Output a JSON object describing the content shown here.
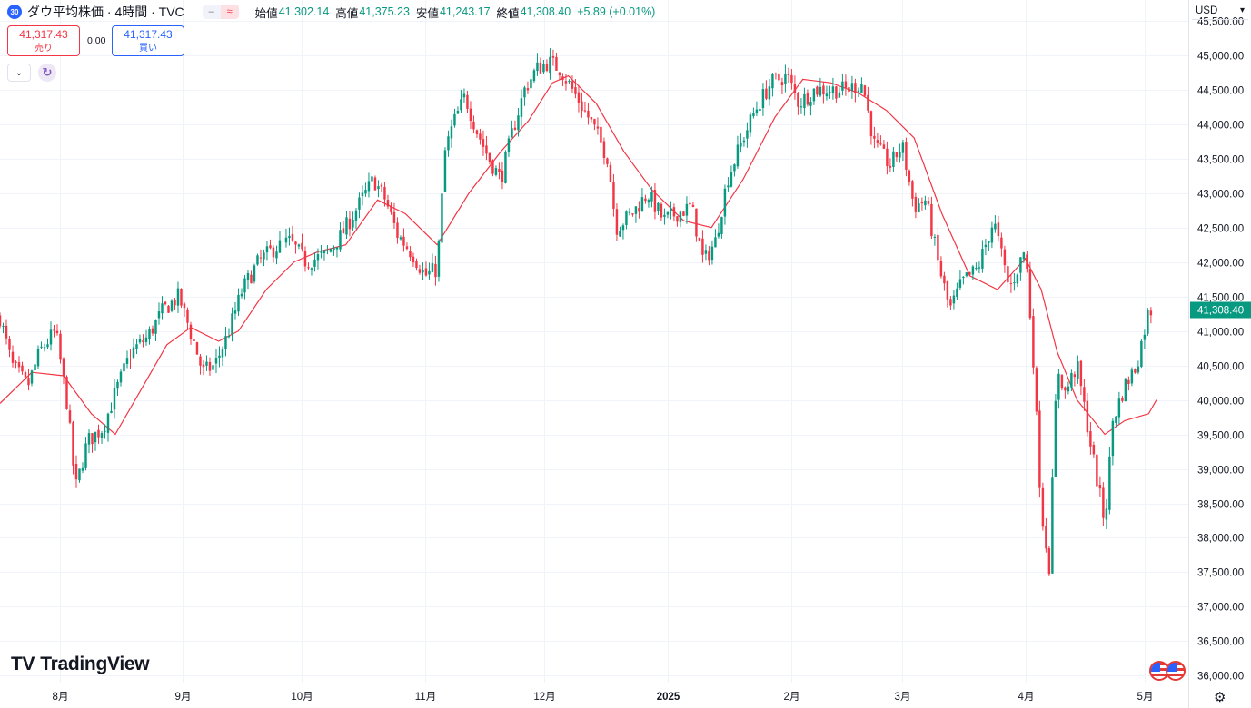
{
  "header": {
    "badge": "30",
    "title": "ダウ平均株価 · 4時間 · TVC",
    "ohlc": [
      {
        "label": "始値",
        "value": "41,302.14"
      },
      {
        "label": "高値",
        "value": "41,375.23"
      },
      {
        "label": "安値",
        "value": "41,243.17"
      },
      {
        "label": "終値",
        "value": "41,308.40"
      }
    ],
    "change": "+5.89 (+0.01%)",
    "pill_left": "–",
    "pill_right": "≈"
  },
  "trade": {
    "sell_price": "41,317.43",
    "sell_label": "売り",
    "spread": "0.00",
    "buy_price": "41,317.43",
    "buy_label": "買い"
  },
  "currency": "USD",
  "logo_text": "TradingView",
  "colors": {
    "up": "#089981",
    "down": "#f23645",
    "ma": "#f23645",
    "last_price_bg": "#089981",
    "grid": "#f0f3fa"
  },
  "chart_data": {
    "type": "candlestick",
    "symbol": "ダウ平均株価",
    "timeframe": "4時間",
    "y_ticks": [
      36000,
      36500,
      37000,
      37500,
      38000,
      38500,
      39000,
      39500,
      40000,
      40500,
      41000,
      41500,
      42000,
      42500,
      43000,
      43500,
      44000,
      44500,
      45000,
      45500
    ],
    "y_tick_labels": [
      "36,000.00",
      "36,500.00",
      "37,000.00",
      "37,500.00",
      "38,000.00",
      "38,500.00",
      "39,000.00",
      "39,500.00",
      "40,000.00",
      "40,500.00",
      "41,000.00",
      "41,500.00",
      "42,000.00",
      "42,500.00",
      "43,000.00",
      "43,500.00",
      "44,000.00",
      "44,500.00",
      "45,000.00",
      "45,500.00"
    ],
    "ylim": [
      35900,
      45800
    ],
    "x_ticks": [
      {
        "label": "8月",
        "date": "2024-08-01"
      },
      {
        "label": "9月",
        "date": "2024-09-01"
      },
      {
        "label": "10月",
        "date": "2024-10-01"
      },
      {
        "label": "11月",
        "date": "2024-11-01"
      },
      {
        "label": "12月",
        "date": "2024-12-01"
      },
      {
        "label": "2025",
        "date": "2025-01-01"
      },
      {
        "label": "2月",
        "date": "2025-02-01"
      },
      {
        "label": "3月",
        "date": "2025-03-01"
      },
      {
        "label": "4月",
        "date": "2025-04-01"
      },
      {
        "label": "5月",
        "date": "2025-05-01"
      }
    ],
    "xlim": [
      "2024-07-17",
      "2025-05-12"
    ],
    "last_price": 41308.4,
    "last_price_label": "41,308.40",
    "close_path": [
      [
        "2024-07-17",
        41200
      ],
      [
        "2024-07-20",
        40500
      ],
      [
        "2024-07-24",
        40200
      ],
      [
        "2024-07-27",
        40700
      ],
      [
        "2024-07-31",
        41000
      ],
      [
        "2024-08-03",
        39900
      ],
      [
        "2024-08-05",
        38700
      ],
      [
        "2024-08-08",
        39400
      ],
      [
        "2024-08-12",
        39600
      ],
      [
        "2024-08-15",
        40100
      ],
      [
        "2024-08-19",
        40700
      ],
      [
        "2024-08-23",
        40900
      ],
      [
        "2024-08-27",
        41300
      ],
      [
        "2024-08-31",
        41500
      ],
      [
        "2024-09-04",
        40800
      ],
      [
        "2024-09-06",
        40400
      ],
      [
        "2024-09-09",
        40500
      ],
      [
        "2024-09-12",
        40900
      ],
      [
        "2024-09-16",
        41600
      ],
      [
        "2024-09-20",
        42000
      ],
      [
        "2024-09-24",
        42200
      ],
      [
        "2024-09-28",
        42300
      ],
      [
        "2024-10-02",
        42000
      ],
      [
        "2024-10-07",
        42100
      ],
      [
        "2024-10-11",
        42400
      ],
      [
        "2024-10-15",
        42800
      ],
      [
        "2024-10-19",
        43200
      ],
      [
        "2024-10-22",
        42900
      ],
      [
        "2024-10-25",
        42400
      ],
      [
        "2024-10-29",
        42100
      ],
      [
        "2024-11-01",
        41800
      ],
      [
        "2024-11-04",
        41900
      ],
      [
        "2024-11-06",
        43600
      ],
      [
        "2024-11-08",
        44000
      ],
      [
        "2024-11-11",
        44400
      ],
      [
        "2024-11-14",
        43900
      ],
      [
        "2024-11-17",
        43500
      ],
      [
        "2024-11-20",
        43200
      ],
      [
        "2024-11-23",
        43900
      ],
      [
        "2024-11-26",
        44500
      ],
      [
        "2024-11-29",
        44800
      ],
      [
        "2024-12-02",
        44900
      ],
      [
        "2024-12-05",
        44800
      ],
      [
        "2024-12-09",
        44400
      ],
      [
        "2024-12-13",
        44000
      ],
      [
        "2024-12-17",
        43500
      ],
      [
        "2024-12-19",
        42500
      ],
      [
        "2024-12-23",
        42700
      ],
      [
        "2024-12-27",
        43000
      ],
      [
        "2024-12-31",
        42600
      ],
      [
        "2025-01-03",
        42700
      ],
      [
        "2025-01-07",
        42800
      ],
      [
        "2025-01-10",
        42000
      ],
      [
        "2025-01-13",
        42300
      ],
      [
        "2025-01-16",
        43200
      ],
      [
        "2025-01-20",
        43800
      ],
      [
        "2025-01-23",
        44200
      ],
      [
        "2025-01-27",
        44600
      ],
      [
        "2025-01-31",
        44700
      ],
      [
        "2025-02-03",
        44300
      ],
      [
        "2025-02-07",
        44500
      ],
      [
        "2025-02-11",
        44500
      ],
      [
        "2025-02-15",
        44500
      ],
      [
        "2025-02-19",
        44600
      ],
      [
        "2025-02-22",
        43700
      ],
      [
        "2025-02-26",
        43400
      ],
      [
        "2025-03-01",
        43700
      ],
      [
        "2025-03-04",
        42800
      ],
      [
        "2025-03-07",
        42900
      ],
      [
        "2025-03-10",
        42000
      ],
      [
        "2025-03-13",
        41300
      ],
      [
        "2025-03-16",
        41700
      ],
      [
        "2025-03-20",
        41900
      ],
      [
        "2025-03-24",
        42600
      ],
      [
        "2025-03-28",
        41600
      ],
      [
        "2025-04-01",
        42200
      ],
      [
        "2025-04-03",
        40600
      ],
      [
        "2025-04-05",
        38400
      ],
      [
        "2025-04-07",
        37600
      ],
      [
        "2025-04-09",
        40500
      ],
      [
        "2025-04-11",
        40100
      ],
      [
        "2025-04-14",
        40500
      ],
      [
        "2025-04-17",
        39500
      ],
      [
        "2025-04-21",
        38200
      ],
      [
        "2025-04-23",
        39700
      ],
      [
        "2025-04-26",
        40200
      ],
      [
        "2025-04-29",
        40500
      ],
      [
        "2025-05-02",
        41300
      ],
      [
        "2025-05-03",
        41308
      ]
    ],
    "candle_step_days": 0.8,
    "moving_average": [
      [
        "2024-07-17",
        39950
      ],
      [
        "2024-07-25",
        40400
      ],
      [
        "2024-08-02",
        40350
      ],
      [
        "2024-08-09",
        39800
      ],
      [
        "2024-08-15",
        39500
      ],
      [
        "2024-08-22",
        40200
      ],
      [
        "2024-08-28",
        40800
      ],
      [
        "2024-09-03",
        41050
      ],
      [
        "2024-09-10",
        40850
      ],
      [
        "2024-09-15",
        41000
      ],
      [
        "2024-09-22",
        41600
      ],
      [
        "2024-09-29",
        42000
      ],
      [
        "2024-10-05",
        42150
      ],
      [
        "2024-10-12",
        42250
      ],
      [
        "2024-10-20",
        42900
      ],
      [
        "2024-10-27",
        42700
      ],
      [
        "2024-11-04",
        42250
      ],
      [
        "2024-11-12",
        43000
      ],
      [
        "2024-11-20",
        43600
      ],
      [
        "2024-11-27",
        44050
      ],
      [
        "2024-12-03",
        44600
      ],
      [
        "2024-12-07",
        44700
      ],
      [
        "2024-12-14",
        44300
      ],
      [
        "2024-12-21",
        43600
      ],
      [
        "2024-12-28",
        43050
      ],
      [
        "2025-01-05",
        42600
      ],
      [
        "2025-01-12",
        42500
      ],
      [
        "2025-01-20",
        43200
      ],
      [
        "2025-01-28",
        44100
      ],
      [
        "2025-02-04",
        44650
      ],
      [
        "2025-02-11",
        44600
      ],
      [
        "2025-02-18",
        44450
      ],
      [
        "2025-02-25",
        44200
      ],
      [
        "2025-03-04",
        43800
      ],
      [
        "2025-03-11",
        42700
      ],
      [
        "2025-03-18",
        41800
      ],
      [
        "2025-03-25",
        41600
      ],
      [
        "2025-04-01",
        42050
      ],
      [
        "2025-04-05",
        41600
      ],
      [
        "2025-04-09",
        40700
      ],
      [
        "2025-04-14",
        40000
      ],
      [
        "2025-04-21",
        39500
      ],
      [
        "2025-04-26",
        39700
      ],
      [
        "2025-05-02",
        39800
      ],
      [
        "2025-05-04",
        40000
      ]
    ]
  }
}
